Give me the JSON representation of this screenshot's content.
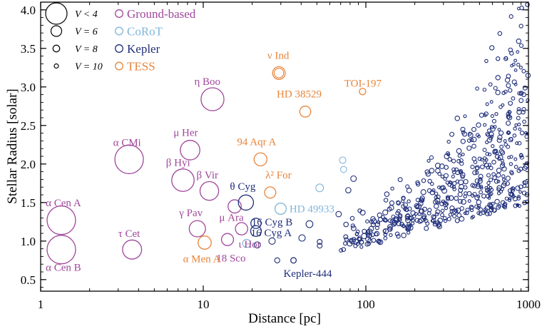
{
  "chart_data": {
    "type": "scatter",
    "xlabel": "Distance [pc]",
    "ylabel": "Stellar Radius [solar]",
    "xscale": "log",
    "xlim": [
      1,
      1000
    ],
    "ylim": [
      0.35,
      4.1
    ],
    "x_ticks": [
      1,
      10,
      100,
      1000
    ],
    "x_tick_labels": [
      "1",
      "10",
      "100",
      "1000"
    ],
    "y_ticks": [
      0.5,
      1.0,
      1.5,
      2.0,
      2.5,
      3.0,
      3.5,
      4.0
    ],
    "y_tick_labels": [
      "0.5",
      "1.0",
      "1.5",
      "2.0",
      "2.5",
      "3.0",
      "3.5",
      "4.0"
    ],
    "grid": false,
    "legend_position": "top-left",
    "size_legend": [
      {
        "label": "V < 4",
        "vmag": 3
      },
      {
        "label": "V = 6",
        "vmag": 6
      },
      {
        "label": "V = 8",
        "vmag": 8
      },
      {
        "label": "V = 10",
        "vmag": 10
      }
    ],
    "series": [
      {
        "name": "Ground-based",
        "color": "#a0479a"
      },
      {
        "name": "CoRoT",
        "color": "#7fb6db"
      },
      {
        "name": "Kepler",
        "color": "#1f2e7a"
      },
      {
        "name": "TESS",
        "color": "#e8843a"
      }
    ],
    "labeled_stars": [
      {
        "label": "α Cen A",
        "x": 1.34,
        "y": 1.27,
        "vmag": 0,
        "series": "Ground-based",
        "lx": 1.38,
        "ly": 1.5
      },
      {
        "label": "α Cen B",
        "x": 1.34,
        "y": 0.89,
        "vmag": 1,
        "series": "Ground-based",
        "lx": 1.38,
        "ly": 0.66
      },
      {
        "label": "α CMi",
        "x": 3.5,
        "y": 2.06,
        "vmag": 0.4,
        "series": "Ground-based",
        "lx": 3.4,
        "ly": 2.28
      },
      {
        "label": "τ Cet",
        "x": 3.65,
        "y": 0.89,
        "vmag": 3.5,
        "series": "Ground-based",
        "lx": 3.5,
        "ly": 1.1
      },
      {
        "label": "η Boo",
        "x": 11.4,
        "y": 2.84,
        "vmag": 2.7,
        "series": "Ground-based",
        "lx": 10.6,
        "ly": 3.07
      },
      {
        "label": "μ Her",
        "x": 8.3,
        "y": 2.18,
        "vmag": 3.4,
        "series": "Ground-based",
        "lx": 7.8,
        "ly": 2.41
      },
      {
        "label": "β Hyi",
        "x": 7.5,
        "y": 1.79,
        "vmag": 2.8,
        "series": "Ground-based",
        "lx": 7.0,
        "ly": 2.02
      },
      {
        "label": "β Vir",
        "x": 10.9,
        "y": 1.65,
        "vmag": 3.6,
        "series": "Ground-based",
        "lx": 10.6,
        "ly": 1.86
      },
      {
        "label": "γ Pav",
        "x": 9.2,
        "y": 1.16,
        "vmag": 4.2,
        "series": "Ground-based",
        "lx": 8.4,
        "ly": 1.37
      },
      {
        "label": "μ Ara",
        "x": 15.6,
        "y": 1.45,
        "vmag": 5.1,
        "series": "Ground-based",
        "lx": 14.9,
        "ly": 1.31
      },
      {
        "label": "18 Sco",
        "x": 14.1,
        "y": 1.02,
        "vmag": 5.5,
        "series": "Ground-based",
        "lx": 14.8,
        "ly": 0.78
      },
      {
        "label": "ι Hor",
        "x": 17.2,
        "y": 1.16,
        "vmag": 5.4,
        "series": "Ground-based",
        "lx": 19.3,
        "ly": 0.96
      },
      {
        "label": "θ Cyg",
        "x": 18.3,
        "y": 1.5,
        "vmag": 4.5,
        "series": "Kepler",
        "lx": 17.5,
        "ly": 1.71
      },
      {
        "label": "16 Cyg A",
        "x": 21.1,
        "y": 1.13,
        "vmag": 6,
        "series": "Kepler",
        "lx": 26.2,
        "ly": 1.11
      },
      {
        "label": "16 Cyg B",
        "x": 21.1,
        "y": 1.23,
        "vmag": 6.2,
        "series": "Kepler",
        "lx": 26.5,
        "ly": 1.25
      },
      {
        "label": "Kepler-444",
        "x": 35.9,
        "y": 0.75,
        "vmag": 8.9,
        "series": "Kepler",
        "lx": 43.9,
        "ly": 0.58
      },
      {
        "label": "ν Ind",
        "x": 29.2,
        "y": 3.18,
        "vmag": 5.3,
        "series": "TESS",
        "lx": 28.9,
        "ly": 3.41
      },
      {
        "label": "HD 38529",
        "x": 42.4,
        "y": 2.68,
        "vmag": 5.9,
        "series": "TESS",
        "lx": 38.9,
        "ly": 2.91
      },
      {
        "label": "94 Aqr A",
        "x": 22.5,
        "y": 2.06,
        "vmag": 5.2,
        "series": "TESS",
        "lx": 21.3,
        "ly": 2.29
      },
      {
        "label": "λ² For",
        "x": 25.8,
        "y": 1.63,
        "vmag": 5.8,
        "series": "TESS",
        "lx": 29.0,
        "ly": 1.86
      },
      {
        "label": "α Men A",
        "x": 10.2,
        "y": 0.98,
        "vmag": 5.1,
        "series": "TESS",
        "lx": 9.8,
        "ly": 0.77
      },
      {
        "label": "TOI-197",
        "x": 95.4,
        "y": 2.94,
        "vmag": 8.2,
        "series": "TESS",
        "lx": 95.9,
        "ly": 3.05
      },
      {
        "label": "HD 49933",
        "x": 29.9,
        "y": 1.42,
        "vmag": 5.8,
        "series": "CoRoT",
        "lx": 46.6,
        "ly": 1.42
      }
    ],
    "other_stars": [
      {
        "x": 18.5,
        "y": 0.97,
        "vmag": 7.2,
        "series": "CoRoT"
      },
      {
        "x": 52,
        "y": 1.69,
        "vmag": 7.4,
        "series": "CoRoT"
      },
      {
        "x": 72,
        "y": 2.05,
        "vmag": 8.2,
        "series": "CoRoT"
      },
      {
        "x": 73,
        "y": 1.93,
        "vmag": 8.4,
        "series": "CoRoT"
      },
      {
        "x": 26.5,
        "y": 1.0,
        "vmag": 8.2,
        "series": "Kepler"
      },
      {
        "x": 21.5,
        "y": 0.95,
        "vmag": 8.4,
        "series": "Kepler"
      },
      {
        "x": 45,
        "y": 1.22,
        "vmag": 7.9,
        "series": "Kepler"
      },
      {
        "x": 40.5,
        "y": 1.04,
        "vmag": 8.2,
        "series": "Kepler"
      },
      {
        "x": 52,
        "y": 0.99,
        "vmag": 9.4,
        "series": "Kepler"
      },
      {
        "x": 52,
        "y": 0.94,
        "vmag": 9.5,
        "series": "Kepler"
      },
      {
        "x": 28.5,
        "y": 0.75,
        "vmag": 9.2,
        "series": "Kepler"
      },
      {
        "x": 68,
        "y": 1.35,
        "vmag": 8.9,
        "series": "Kepler"
      },
      {
        "x": 84,
        "y": 1.81,
        "vmag": 8.8,
        "series": "Kepler"
      },
      {
        "x": 78,
        "y": 1.66,
        "vmag": 9.0,
        "series": "Kepler"
      }
    ],
    "kepler_field": {
      "series": "Kepler",
      "x_range": [
        70,
        1000
      ],
      "y_range": [
        0.85,
        4.1
      ],
      "count": 560
    }
  }
}
